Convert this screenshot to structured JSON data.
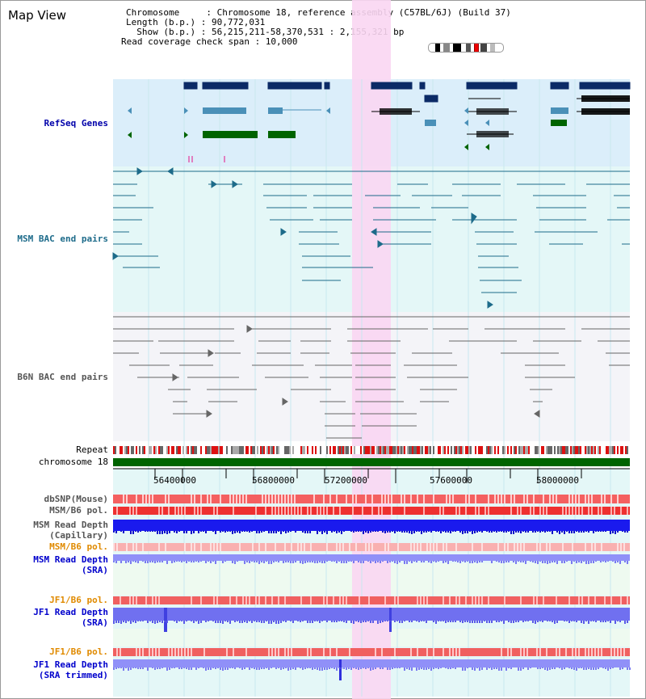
{
  "header": {
    "title": "Map View",
    "info_lines": [
      "Chromosome     : Chromosome 18, reference assembly (C57BL/6J) (Build 37)",
      "Length (b.p.) : 90,772,031",
      "  Show (b.p.) : 56,215,211-58,370,531 : 2,155,321 bp",
      "Read coverage check span : 10,000"
    ]
  },
  "tracks": {
    "refseq": "RefSeq Genes",
    "msm_bac": "MSM BAC end pairs",
    "b6n_bac": "B6N BAC end pairs",
    "repeat": "Repeat",
    "chromosome": "chromosome 18",
    "dbsnp": "dbSNP(Mouse)",
    "msm_pol": "MSM/B6 pol.",
    "msm_depth_cap_1": "MSM Read Depth",
    "msm_depth_cap_2": "(Capillary)",
    "msm_pol_sra": "MSM/B6 pol.",
    "msm_depth_sra_1": "MSM Read Depth",
    "msm_depth_sra_2": "(SRA)",
    "jf1_pol": "JF1/B6 pol.",
    "jf1_depth_1": "JF1 Read Depth",
    "jf1_depth_2": "(SRA)",
    "jf1_pol_2": "JF1/B6 pol.",
    "jf1_trim_1": "JF1 Read Depth",
    "jf1_trim_2": "(SRA trimmed)"
  },
  "axis": {
    "ticks": [
      "56400000",
      "56800000",
      "57200000",
      "57600000",
      "58000000"
    ]
  },
  "colors": {
    "refseq_bg": "#dbeefa",
    "msm_bg": "#e4f7f7",
    "b6n_bg": "#f4f4f8",
    "highlight": "#f9d6f2",
    "refseq_label": "#0000aa",
    "msm_label": "#1d6b8a",
    "b6n_label": "#555555",
    "pol_label_orange": "#e08a00",
    "depth_label_blue": "#0000cc",
    "chromosome_bar": "#006400"
  }
}
